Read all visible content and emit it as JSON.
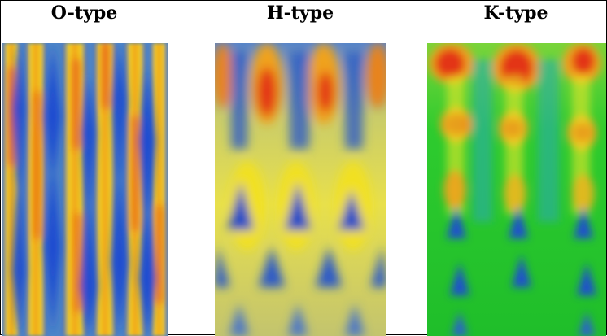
{
  "panels": [
    {
      "title": "O-type",
      "colormap": {
        "base": "#2f5fc8",
        "mid": "#f4e21a",
        "hot": "#e8311a"
      }
    },
    {
      "title": "H-type",
      "colormap": {
        "base": "#d6d25a",
        "mid": "#f2e12e",
        "hot": "#e13a14",
        "low": "#2a56c2"
      }
    },
    {
      "title": "K-type",
      "colormap": {
        "base": "#1fc82c",
        "mid": "#e9e726",
        "hot": "#e33c16",
        "low": "#1a4fcf"
      }
    }
  ]
}
